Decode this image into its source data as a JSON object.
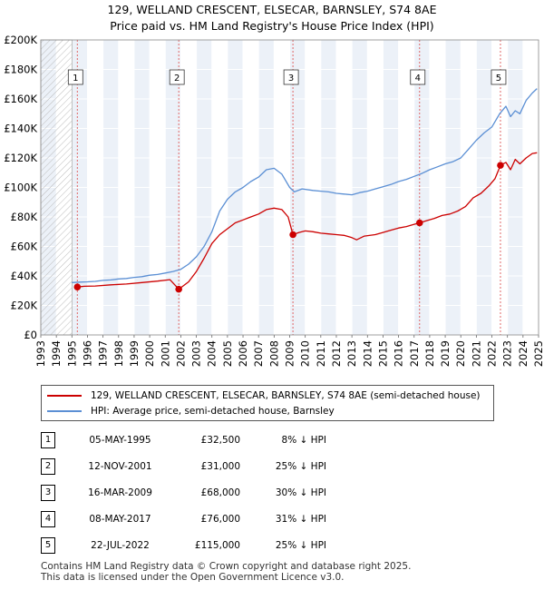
{
  "title": "129, WELLAND CRESCENT, ELSECAR, BARNSLEY, S74 8AE\nPrice paid vs. HM Land Registry's House Price Index (HPI)",
  "title_line1": "129, WELLAND CRESCENT, ELSECAR, BARNSLEY, S74 8AE",
  "title_line2": "Price paid vs. HM Land Registry's House Price Index (HPI)",
  "colors": {
    "price_line": "#cc0000",
    "hpi_line": "#5b8fd4",
    "band": "#dde6f3",
    "sale_marker": "#cc0000",
    "vline": "#e06666"
  },
  "chart_data": {
    "type": "line",
    "xlim": [
      1993,
      2025
    ],
    "ylim": [
      0,
      200000
    ],
    "x_ticks": [
      "1993",
      "1994",
      "1995",
      "1996",
      "1997",
      "1998",
      "1999",
      "2000",
      "2001",
      "2002",
      "2003",
      "2004",
      "2005",
      "2006",
      "2007",
      "2008",
      "2009",
      "2010",
      "2011",
      "2012",
      "2013",
      "2014",
      "2015",
      "2016",
      "2017",
      "2018",
      "2019",
      "2020",
      "2021",
      "2022",
      "2023",
      "2024",
      "2025"
    ],
    "y_ticks": [
      {
        "value": 0,
        "label": "£0"
      },
      {
        "value": 20000,
        "label": "£20K"
      },
      {
        "value": 40000,
        "label": "£40K"
      },
      {
        "value": 60000,
        "label": "£60K"
      },
      {
        "value": 80000,
        "label": "£80K"
      },
      {
        "value": 100000,
        "label": "£100K"
      },
      {
        "value": 120000,
        "label": "£120K"
      },
      {
        "value": 140000,
        "label": "£140K"
      },
      {
        "value": 160000,
        "label": "£160K"
      },
      {
        "value": 180000,
        "label": "£180K"
      },
      {
        "value": 200000,
        "label": "£200K"
      }
    ],
    "grid": true,
    "series": [
      {
        "name": "129, WELLAND CRESCENT, ELSECAR, BARNSLEY, S74 8AE (semi-detached house)",
        "color": "#cc0000",
        "points": [
          [
            1995.35,
            32500
          ],
          [
            1995.8,
            33000
          ],
          [
            1996.5,
            33200
          ],
          [
            1997.5,
            34000
          ],
          [
            1998.5,
            34500
          ],
          [
            1999.5,
            35500
          ],
          [
            2000.5,
            36500
          ],
          [
            2001.3,
            37500
          ],
          [
            2001.87,
            31000
          ],
          [
            2002.5,
            36000
          ],
          [
            2003.0,
            43000
          ],
          [
            2003.5,
            52000
          ],
          [
            2004.0,
            62000
          ],
          [
            2004.5,
            68000
          ],
          [
            2005.0,
            72000
          ],
          [
            2005.5,
            76000
          ],
          [
            2006.0,
            78000
          ],
          [
            2006.5,
            80000
          ],
          [
            2007.0,
            82000
          ],
          [
            2007.5,
            85000
          ],
          [
            2008.0,
            86000
          ],
          [
            2008.5,
            85000
          ],
          [
            2008.9,
            80000
          ],
          [
            2009.21,
            68000
          ],
          [
            2009.6,
            69500
          ],
          [
            2010.0,
            70500
          ],
          [
            2010.5,
            70000
          ],
          [
            2011.0,
            69000
          ],
          [
            2011.5,
            68500
          ],
          [
            2012.0,
            68000
          ],
          [
            2012.5,
            67500
          ],
          [
            2013.0,
            66000
          ],
          [
            2013.3,
            64500
          ],
          [
            2013.8,
            67000
          ],
          [
            2014.5,
            68000
          ],
          [
            2015.0,
            69500
          ],
          [
            2015.5,
            71000
          ],
          [
            2016.0,
            72500
          ],
          [
            2016.5,
            73500
          ],
          [
            2017.0,
            75000
          ],
          [
            2017.35,
            76000
          ],
          [
            2017.8,
            77500
          ],
          [
            2018.3,
            79000
          ],
          [
            2018.8,
            81000
          ],
          [
            2019.3,
            82000
          ],
          [
            2019.8,
            84000
          ],
          [
            2020.3,
            87000
          ],
          [
            2020.8,
            93000
          ],
          [
            2021.3,
            96000
          ],
          [
            2021.8,
            101000
          ],
          [
            2022.2,
            106000
          ],
          [
            2022.55,
            115000
          ],
          [
            2022.9,
            117000
          ],
          [
            2023.2,
            112000
          ],
          [
            2023.5,
            119000
          ],
          [
            2023.8,
            116000
          ],
          [
            2024.2,
            120000
          ],
          [
            2024.6,
            123000
          ],
          [
            2024.9,
            123500
          ]
        ]
      },
      {
        "name": "HPI: Average price, semi-detached house, Barnsley",
        "color": "#5b8fd4",
        "points": [
          [
            1995.0,
            35500
          ],
          [
            1995.5,
            35800
          ],
          [
            1996.0,
            36000
          ],
          [
            1996.5,
            36300
          ],
          [
            1997.0,
            37000
          ],
          [
            1997.5,
            37300
          ],
          [
            1998.0,
            38000
          ],
          [
            1998.5,
            38300
          ],
          [
            1999.0,
            39000
          ],
          [
            1999.5,
            39500
          ],
          [
            2000.0,
            40500
          ],
          [
            2000.5,
            41000
          ],
          [
            2001.0,
            42000
          ],
          [
            2001.5,
            43000
          ],
          [
            2002.0,
            44500
          ],
          [
            2002.5,
            48000
          ],
          [
            2003.0,
            53000
          ],
          [
            2003.5,
            60000
          ],
          [
            2004.0,
            70000
          ],
          [
            2004.5,
            84000
          ],
          [
            2005.0,
            92000
          ],
          [
            2005.5,
            97000
          ],
          [
            2006.0,
            100000
          ],
          [
            2006.5,
            104000
          ],
          [
            2007.0,
            107000
          ],
          [
            2007.5,
            112000
          ],
          [
            2008.0,
            113000
          ],
          [
            2008.5,
            109000
          ],
          [
            2009.0,
            100000
          ],
          [
            2009.3,
            97000
          ],
          [
            2009.8,
            99000
          ],
          [
            2010.5,
            98000
          ],
          [
            2011.0,
            97500
          ],
          [
            2011.5,
            97000
          ],
          [
            2012.0,
            96000
          ],
          [
            2012.5,
            95500
          ],
          [
            2013.0,
            95000
          ],
          [
            2013.5,
            96500
          ],
          [
            2014.0,
            97500
          ],
          [
            2014.5,
            99000
          ],
          [
            2015.0,
            100500
          ],
          [
            2015.5,
            102000
          ],
          [
            2016.0,
            104000
          ],
          [
            2016.5,
            105500
          ],
          [
            2017.0,
            107500
          ],
          [
            2017.5,
            109500
          ],
          [
            2018.0,
            112000
          ],
          [
            2018.5,
            114000
          ],
          [
            2019.0,
            116000
          ],
          [
            2019.5,
            117500
          ],
          [
            2020.0,
            120000
          ],
          [
            2020.5,
            126000
          ],
          [
            2021.0,
            132000
          ],
          [
            2021.5,
            137000
          ],
          [
            2022.0,
            141000
          ],
          [
            2022.5,
            150000
          ],
          [
            2022.9,
            155000
          ],
          [
            2023.2,
            148000
          ],
          [
            2023.5,
            152000
          ],
          [
            2023.8,
            150000
          ],
          [
            2024.2,
            159000
          ],
          [
            2024.6,
            164000
          ],
          [
            2024.9,
            167000
          ]
        ]
      }
    ],
    "sales": [
      {
        "num": "1",
        "x": 1995.35,
        "price": 32500
      },
      {
        "num": "2",
        "x": 2001.87,
        "price": 31000
      },
      {
        "num": "3",
        "x": 2009.21,
        "price": 68000
      },
      {
        "num": "4",
        "x": 2017.35,
        "price": 76000
      },
      {
        "num": "5",
        "x": 2022.55,
        "price": 115000
      }
    ],
    "hatched_until": 1995.0
  },
  "legend": {
    "price_label": "129, WELLAND CRESCENT, ELSECAR, BARNSLEY, S74 8AE (semi-detached house)",
    "hpi_label": "HPI: Average price, semi-detached house, Barnsley"
  },
  "table": [
    {
      "num": "1",
      "date": "05-MAY-1995",
      "price": "£32,500",
      "hpi": "8% ↓ HPI"
    },
    {
      "num": "2",
      "date": "12-NOV-2001",
      "price": "£31,000",
      "hpi": "25% ↓ HPI"
    },
    {
      "num": "3",
      "date": "16-MAR-2009",
      "price": "£68,000",
      "hpi": "30% ↓ HPI"
    },
    {
      "num": "4",
      "date": "08-MAY-2017",
      "price": "£76,000",
      "hpi": "31% ↓ HPI"
    },
    {
      "num": "5",
      "date": "22-JUL-2022",
      "price": "£115,000",
      "hpi": "25% ↓ HPI"
    }
  ],
  "footer": "Contains HM Land Registry data © Crown copyright and database right 2025.\nThis data is licensed under the Open Government Licence v3.0."
}
